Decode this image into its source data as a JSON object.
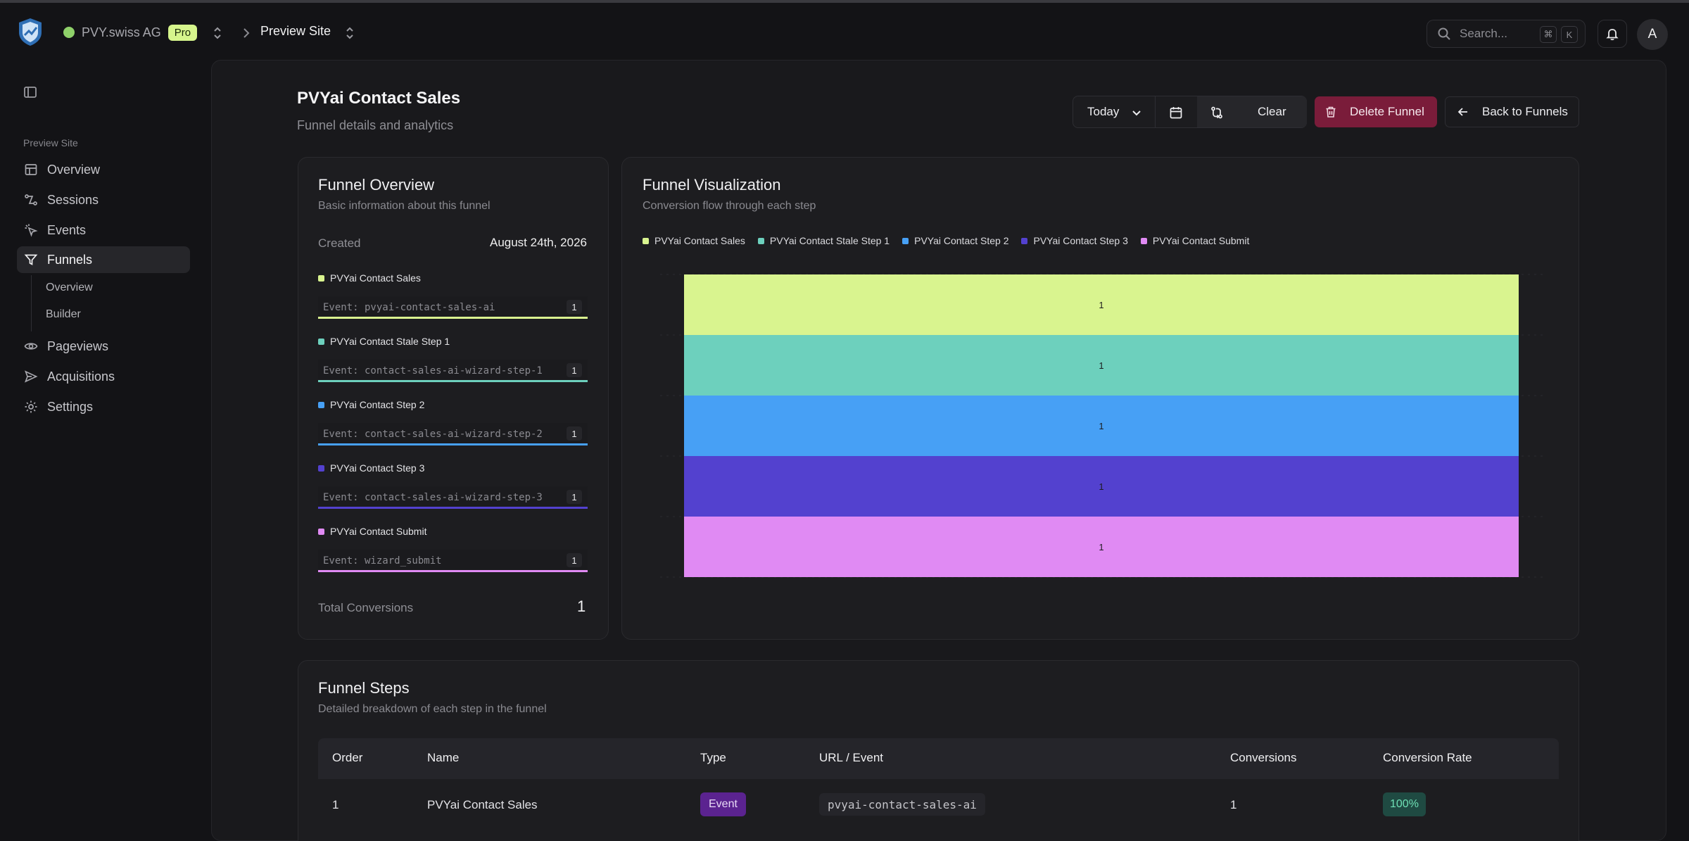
{
  "topbar": {
    "org_name": "PVY.swiss AG",
    "plan_badge": "Pro",
    "site_name": "Preview Site",
    "search_placeholder": "Search...",
    "kbd_cmd": "⌘",
    "kbd_key": "K",
    "avatar_initial": "A"
  },
  "sidebar": {
    "section_label": "Preview Site",
    "items": [
      {
        "label": "Overview",
        "icon": "layout-icon"
      },
      {
        "label": "Sessions",
        "icon": "route-icon"
      },
      {
        "label": "Events",
        "icon": "cursor-click-icon"
      },
      {
        "label": "Funnels",
        "icon": "funnel-icon",
        "active": true
      },
      {
        "label": "Pageviews",
        "icon": "eye-icon"
      },
      {
        "label": "Acquisitions",
        "icon": "send-icon"
      },
      {
        "label": "Settings",
        "icon": "gear-icon"
      }
    ],
    "sub_items": [
      "Overview",
      "Builder"
    ]
  },
  "page": {
    "title": "PVYai Contact Sales",
    "subtitle": "Funnel details and analytics"
  },
  "toolbar": {
    "range_label": "Today",
    "clear_label": "Clear",
    "delete_label": "Delete Funnel",
    "back_label": "Back to Funnels"
  },
  "overview": {
    "title": "Funnel Overview",
    "subtitle": "Basic information about this funnel",
    "created_label": "Created",
    "created_value": "August 24th, 2026",
    "steps": [
      {
        "name": "PVYai Contact Sales",
        "event": "Event: pvyai-contact-sales-ai",
        "count": "1",
        "color": "#d9f48f"
      },
      {
        "name": "PVYai Contact Stale Step 1",
        "event": "Event: contact-sales-ai-wizard-step-1",
        "count": "1",
        "color": "#6dd0bd"
      },
      {
        "name": "PVYai Contact Step 2",
        "event": "Event: contact-sales-ai-wizard-step-2",
        "count": "1",
        "color": "#47a0f5"
      },
      {
        "name": "PVYai Contact Step 3",
        "event": "Event: contact-sales-ai-wizard-step-3",
        "count": "1",
        "color": "#5341cf"
      },
      {
        "name": "PVYai Contact Submit",
        "event": "Event: wizard_submit",
        "count": "1",
        "color": "#e08af3"
      }
    ],
    "total_label": "Total Conversions",
    "total_value": "1"
  },
  "visualization": {
    "title": "Funnel Visualization",
    "subtitle": "Conversion flow through each step"
  },
  "chart_data": {
    "type": "bar",
    "title": "",
    "categories": [
      "PVYai Contact Sales",
      "PVYai Contact Stale Step 1",
      "PVYai Contact Step 2",
      "PVYai Contact Step 3",
      "PVYai Contact Submit"
    ],
    "values": [
      1,
      1,
      1,
      1,
      1
    ],
    "colors": [
      "#d9f48f",
      "#6dd0bd",
      "#47a0f5",
      "#5341cf",
      "#e08af3"
    ],
    "stacked": true,
    "legend": "top-left",
    "grid": true
  },
  "steps_table": {
    "title": "Funnel Steps",
    "subtitle": "Detailed breakdown of each step in the funnel",
    "columns": [
      "Order",
      "Name",
      "Type",
      "URL / Event",
      "Conversions",
      "Conversion Rate"
    ],
    "rows": [
      {
        "order": "1",
        "name": "PVYai Contact Sales",
        "type": "Event",
        "url_event": "pvyai-contact-sales-ai",
        "conversions": "1",
        "rate": "100%"
      }
    ]
  }
}
